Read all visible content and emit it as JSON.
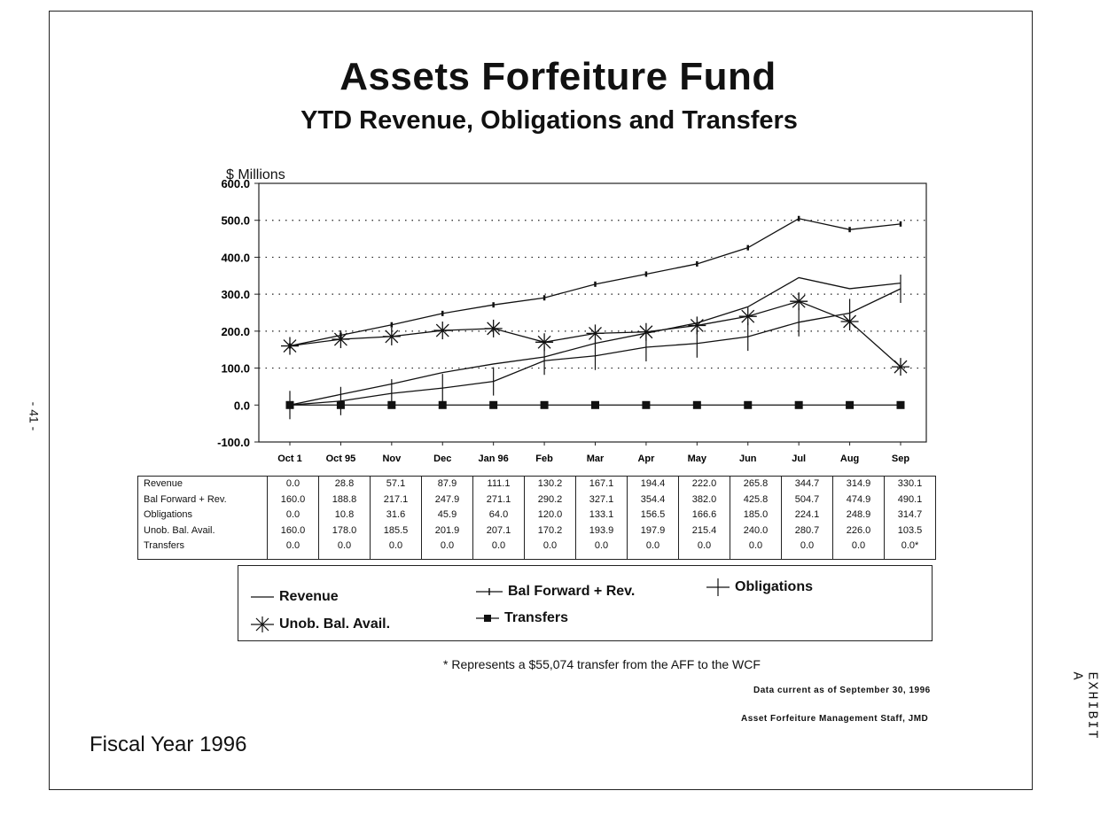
{
  "page": {
    "title": "Assets Forfeiture Fund",
    "subtitle": "YTD Revenue, Obligations and Transfers",
    "footnote": "* Represents a $55,074 transfer from the AFF to the WCF",
    "date_note": "Data current as of September 30, 1996",
    "source_note": "Asset Forfeiture Management Staff, JMD",
    "fiscal_year": "Fiscal Year 1996",
    "page_number": "- 41 -",
    "exhibit": "EXHIBIT A"
  },
  "chart_data": {
    "type": "line",
    "ylabel": "$ Millions",
    "ylim": [
      -100,
      600
    ],
    "yticks": [
      "-100.0",
      "0.0",
      "100.0",
      "200.0",
      "300.0",
      "400.0",
      "500.0",
      "600.0"
    ],
    "categories": [
      "Oct 1",
      "Oct 95",
      "Nov",
      "Dec",
      "Jan 96",
      "Feb",
      "Mar",
      "Apr",
      "May",
      "Jun",
      "Jul",
      "Aug",
      "Sep"
    ],
    "grid": "dotted horizontal",
    "series": [
      {
        "name": "Revenue",
        "marker": "none",
        "values": [
          0.0,
          28.8,
          57.1,
          87.9,
          111.1,
          130.2,
          167.1,
          194.4,
          222.0,
          265.8,
          344.7,
          314.9,
          330.1
        ]
      },
      {
        "name": "Bal Forward + Rev.",
        "marker": "tick",
        "values": [
          160.0,
          188.8,
          217.1,
          247.9,
          271.1,
          290.2,
          327.1,
          354.4,
          382.0,
          425.8,
          504.7,
          474.9,
          490.1
        ]
      },
      {
        "name": "Obligations",
        "marker": "cross",
        "values": [
          0.0,
          10.8,
          31.6,
          45.9,
          64.0,
          120.0,
          133.1,
          156.5,
          166.6,
          185.0,
          224.1,
          248.9,
          314.7
        ]
      },
      {
        "name": "Unob. Bal. Avail.",
        "marker": "star",
        "values": [
          160.0,
          178.0,
          185.5,
          201.9,
          207.1,
          170.2,
          193.9,
          197.9,
          215.4,
          240.0,
          280.7,
          226.0,
          103.5
        ]
      },
      {
        "name": "Transfers",
        "marker": "square",
        "values": [
          0.0,
          0.0,
          0.0,
          0.0,
          0.0,
          0.0,
          0.0,
          0.0,
          0.0,
          0.0,
          0.0,
          0.0,
          0.0
        ]
      }
    ],
    "table": {
      "row_labels": [
        "Revenue",
        "Bal Forward + Rev.",
        "Obligations",
        "Unob. Bal. Avail.",
        "Transfers"
      ],
      "columns": [
        [
          "0.0",
          "160.0",
          "0.0",
          "160.0",
          "0.0"
        ],
        [
          "28.8",
          "188.8",
          "10.8",
          "178.0",
          "0.0"
        ],
        [
          "57.1",
          "217.1",
          "31.6",
          "185.5",
          "0.0"
        ],
        [
          "87.9",
          "247.9",
          "45.9",
          "201.9",
          "0.0"
        ],
        [
          "111.1",
          "271.1",
          "64.0",
          "207.1",
          "0.0"
        ],
        [
          "130.2",
          "290.2",
          "120.0",
          "170.2",
          "0.0"
        ],
        [
          "167.1",
          "327.1",
          "133.1",
          "193.9",
          "0.0"
        ],
        [
          "194.4",
          "354.4",
          "156.5",
          "197.9",
          "0.0"
        ],
        [
          "222.0",
          "382.0",
          "166.6",
          "215.4",
          "0.0"
        ],
        [
          "265.8",
          "425.8",
          "185.0",
          "240.0",
          "0.0"
        ],
        [
          "344.7",
          "504.7",
          "224.1",
          "280.7",
          "0.0"
        ],
        [
          "314.9",
          "474.9",
          "248.9",
          "226.0",
          "0.0"
        ],
        [
          "330.1",
          "490.1",
          "314.7",
          "103.5",
          "0.0*"
        ]
      ]
    }
  }
}
